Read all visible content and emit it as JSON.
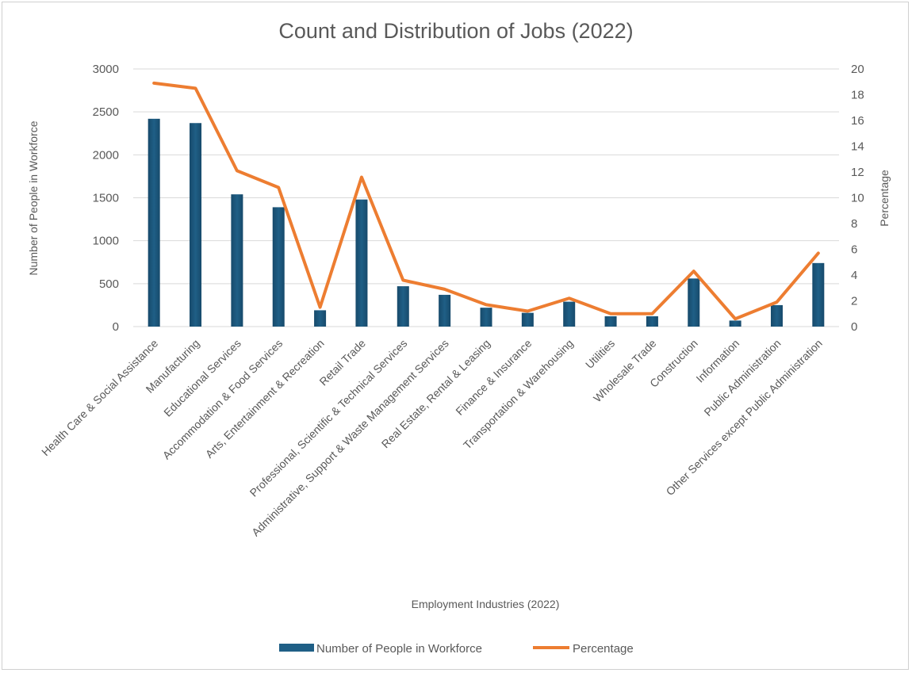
{
  "chart_data": {
    "type": "bar",
    "title": "Count and Distribution of Jobs (2022)",
    "xlabel": "Employment Industries (2022)",
    "ylabel": "Number of People in Workforce",
    "y2label": "Percentage",
    "ylim": [
      0,
      3000
    ],
    "y2lim": [
      0,
      20
    ],
    "yticks": [
      "0",
      "500",
      "1000",
      "1500",
      "2000",
      "2500",
      "3000"
    ],
    "y2ticks": [
      "0",
      "2",
      "4",
      "6",
      "8",
      "10",
      "12",
      "14",
      "16",
      "18",
      "20"
    ],
    "grid": true,
    "legend_position": "bottom",
    "categories": [
      "Health Care & Social Assistance",
      "Manufacturing",
      "Educational Services",
      "Accommodation & Food Services",
      "Arts, Entertainment & Recreation",
      "Retail Trade",
      "Professional, Scientific & Technical Services",
      "Administrative, Support & Waste Management Services",
      "Real Estate, Rental & Leasing",
      "Finance & Insurance",
      "Transportation & Warehousing",
      "Utilities",
      "Wholesale Trade",
      "Construction",
      "Information",
      "Public Administration",
      "Other Services except Public Administration"
    ],
    "series": [
      {
        "name": "Number of People in Workforce",
        "type": "bar",
        "axis": "left",
        "color": "#1f5f86",
        "values": [
          2420,
          2370,
          1540,
          1390,
          190,
          1480,
          470,
          370,
          220,
          160,
          290,
          120,
          120,
          560,
          70,
          250,
          740
        ]
      },
      {
        "name": "Percentage",
        "type": "line",
        "axis": "right",
        "color": "#ed7d31",
        "values": [
          18.9,
          18.5,
          12.1,
          10.8,
          1.5,
          11.6,
          3.6,
          2.9,
          1.7,
          1.2,
          2.2,
          1.0,
          1.0,
          4.3,
          0.6,
          1.9,
          5.7
        ]
      }
    ]
  }
}
